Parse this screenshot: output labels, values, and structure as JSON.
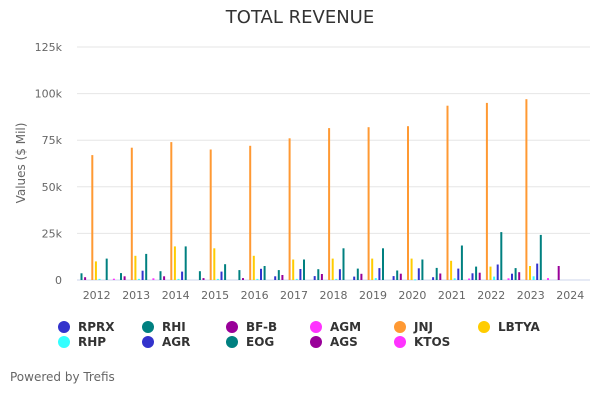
{
  "chart_data": {
    "type": "bar",
    "title": "TOTAL REVENUE",
    "xlabel": "",
    "ylabel": "Values ($ Mil)",
    "ylim": [
      0,
      125000
    ],
    "yticks": [
      0,
      25000,
      50000,
      75000,
      100000,
      125000
    ],
    "ytick_labels": [
      "0",
      "25k",
      "50k",
      "75k",
      "100k",
      "125k"
    ],
    "grid": true,
    "legend_position": "bottom",
    "categories": [
      "2012",
      "2013",
      "2014",
      "2015",
      "2016",
      "2017",
      "2018",
      "2019",
      "2020",
      "2021",
      "2022",
      "2023",
      "2024"
    ],
    "series": [
      {
        "name": "RPRX",
        "color": "#3333cc",
        "values": [
          null,
          null,
          null,
          null,
          null,
          2000,
          2100,
          1800,
          2100,
          1500,
          3600,
          3400,
          null
        ]
      },
      {
        "name": "RHI",
        "color": "#008080",
        "values": [
          3600,
          3700,
          4700,
          4700,
          5300,
          5300,
          5800,
          6100,
          5100,
          6500,
          7200,
          6400,
          null
        ]
      },
      {
        "name": "BF-B",
        "color": "#990099",
        "values": [
          1500,
          2000,
          2000,
          1000,
          1000,
          2700,
          3200,
          3300,
          3400,
          3500,
          3900,
          4200,
          7500
        ]
      },
      {
        "name": "AGM",
        "color": "#ff33ff",
        "values": [
          null,
          null,
          null,
          null,
          null,
          null,
          null,
          null,
          null,
          null,
          null,
          null,
          null
        ]
      },
      {
        "name": "JNJ",
        "color": "#ff9933",
        "values": [
          67000,
          71000,
          74000,
          70000,
          72000,
          76000,
          81500,
          82000,
          82500,
          93500,
          95000,
          97000,
          null
        ]
      },
      {
        "name": "LBTYA",
        "color": "#ffcc00",
        "values": [
          10000,
          13000,
          18000,
          17000,
          13000,
          11000,
          11500,
          11500,
          11500,
          10300,
          7200,
          7500,
          null
        ]
      },
      {
        "name": "RHP",
        "color": "#33ffff",
        "values": [
          600,
          600,
          600,
          600,
          600,
          600,
          600,
          1000,
          400,
          900,
          1800,
          2000,
          null
        ]
      },
      {
        "name": "AGR",
        "color": "#3333cc",
        "values": [
          null,
          5000,
          4500,
          4500,
          6000,
          5900,
          5800,
          6400,
          6300,
          6100,
          8300,
          8800,
          null
        ]
      },
      {
        "name": "EOG",
        "color": "#008080",
        "values": [
          11500,
          14000,
          18000,
          8500,
          7500,
          11000,
          17000,
          17000,
          11000,
          18500,
          25700,
          24200,
          null
        ]
      },
      {
        "name": "AGS",
        "color": "#990099",
        "values": [
          null,
          null,
          null,
          null,
          null,
          null,
          null,
          null,
          null,
          null,
          null,
          null,
          null
        ]
      },
      {
        "name": "KTOS",
        "color": "#ff33ff",
        "values": [
          700,
          900,
          null,
          null,
          null,
          null,
          null,
          null,
          null,
          800,
          900,
          1000,
          null
        ]
      }
    ]
  },
  "legend": [
    {
      "name": "RPRX",
      "color": "#3333cc"
    },
    {
      "name": "RHI",
      "color": "#008080"
    },
    {
      "name": "BF-B",
      "color": "#990099"
    },
    {
      "name": "AGM",
      "color": "#ff33ff"
    },
    {
      "name": "JNJ",
      "color": "#ff9933"
    },
    {
      "name": "LBTYA",
      "color": "#ffcc00"
    },
    {
      "name": "RHP",
      "color": "#33ffff"
    },
    {
      "name": "AGR",
      "color": "#3333cc"
    },
    {
      "name": "EOG",
      "color": "#008080"
    },
    {
      "name": "AGS",
      "color": "#990099"
    },
    {
      "name": "KTOS",
      "color": "#ff33ff"
    }
  ],
  "footer": "Powered by Trefis"
}
